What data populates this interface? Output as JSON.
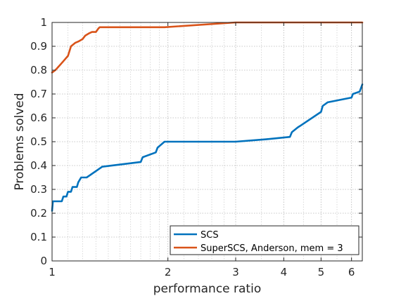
{
  "chart_data": {
    "type": "line",
    "title": "",
    "xlabel": "performance ratio",
    "ylabel": "Problems solved",
    "xscale": "log",
    "xlim": [
      1,
      6.4
    ],
    "ylim": [
      0,
      1
    ],
    "grid": true,
    "legend_position": "bottom-right",
    "x_tick_labels": [
      {
        "value": 1,
        "label": "1"
      },
      {
        "value": 2,
        "label": "2"
      },
      {
        "value": 3,
        "label": "3"
      },
      {
        "value": 4,
        "label": "4"
      },
      {
        "value": 5,
        "label": "5"
      },
      {
        "value": 6,
        "label": "6"
      }
    ],
    "y_tick_labels": [
      {
        "value": 0,
        "label": "0"
      },
      {
        "value": 0.1,
        "label": "0.1"
      },
      {
        "value": 0.2,
        "label": "0.2"
      },
      {
        "value": 0.3,
        "label": "0.3"
      },
      {
        "value": 0.4,
        "label": "0.4"
      },
      {
        "value": 0.5,
        "label": "0.5"
      },
      {
        "value": 0.6,
        "label": "0.6"
      },
      {
        "value": 0.7,
        "label": "0.7"
      },
      {
        "value": 0.8,
        "label": "0.8"
      },
      {
        "value": 0.9,
        "label": "0.9"
      },
      {
        "value": 1,
        "label": "1"
      }
    ],
    "series": [
      {
        "name": "SCS",
        "color": "#0072bd",
        "x": [
          1,
          1.005,
          1.01,
          1.06,
          1.07,
          1.09,
          1.1,
          1.12,
          1.13,
          1.16,
          1.17,
          1.19,
          1.2,
          1.23,
          1.35,
          1.7,
          1.72,
          1.86,
          1.88,
          1.96,
          2.05,
          3.0,
          3.6,
          4.15,
          4.2,
          4.35,
          4.4,
          5.0,
          5.05,
          5.2,
          6.0,
          6.05,
          6.3,
          6.4
        ],
        "y": [
          0.21,
          0.25,
          0.25,
          0.25,
          0.27,
          0.27,
          0.29,
          0.29,
          0.31,
          0.31,
          0.33,
          0.35,
          0.35,
          0.35,
          0.395,
          0.415,
          0.435,
          0.455,
          0.475,
          0.5,
          0.5,
          0.5,
          0.51,
          0.52,
          0.54,
          0.56,
          0.565,
          0.625,
          0.65,
          0.665,
          0.685,
          0.7,
          0.71,
          0.74
        ]
      },
      {
        "name": "SuperSCS, Anderson, mem = 3",
        "color": "#d95319",
        "x": [
          1,
          1.02,
          1.04,
          1.06,
          1.08,
          1.1,
          1.12,
          1.15,
          1.17,
          1.2,
          1.22,
          1.25,
          1.27,
          1.28,
          1.3,
          1.32,
          1.33,
          1.96,
          3.0,
          6.4
        ],
        "y": [
          0.79,
          0.8,
          0.815,
          0.83,
          0.845,
          0.86,
          0.9,
          0.915,
          0.92,
          0.93,
          0.945,
          0.955,
          0.96,
          0.96,
          0.96,
          0.975,
          0.98,
          0.98,
          1.0,
          1.0
        ]
      }
    ]
  }
}
